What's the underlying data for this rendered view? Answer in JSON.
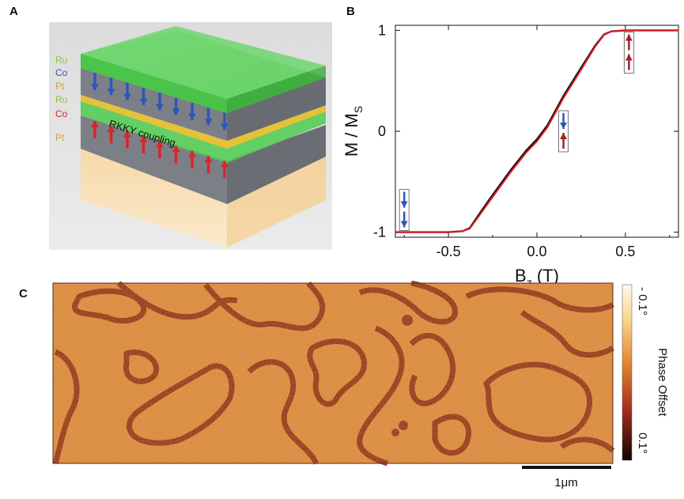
{
  "panels": {
    "a_label": "A",
    "b_label": "B",
    "c_label": "C"
  },
  "stack": {
    "layers": [
      {
        "name": "Ru",
        "color": "#8cc63f"
      },
      {
        "name": "Co",
        "color": "#2e56b8"
      },
      {
        "name": "Pt",
        "color": "#c9a44c"
      },
      {
        "name": "Ru",
        "color": "#8cc63f"
      },
      {
        "name": "Co",
        "color": "#d9252a"
      },
      {
        "name": "Pt",
        "color": "#c9a44c"
      }
    ],
    "coupling_label": "RKKY coupling"
  },
  "chart_data": {
    "type": "line",
    "title": "",
    "xlabel_main": "B",
    "xlabel_sub": "z",
    "xlabel_unit": " (T)",
    "ylabel_main": "M / M",
    "ylabel_sub": "S",
    "xlim": [
      -0.8,
      0.8
    ],
    "ylim": [
      -1.05,
      1.05
    ],
    "xticks": [
      -0.5,
      0.0,
      0.5
    ],
    "xtick_labels": [
      "-0.5",
      "0.0",
      "0.5"
    ],
    "yticks": [
      -1,
      0,
      1
    ],
    "ytick_labels": [
      "-1",
      "0",
      "1"
    ],
    "series": [
      {
        "name": "black",
        "color": "#111111",
        "x": [
          -0.8,
          -0.5,
          -0.42,
          -0.38,
          -0.33,
          -0.25,
          -0.15,
          -0.06,
          0.0,
          0.06,
          0.15,
          0.25,
          0.33,
          0.38,
          0.42,
          0.5,
          0.8
        ],
        "y": [
          -1.0,
          -1.0,
          -0.99,
          -0.96,
          -0.83,
          -0.63,
          -0.39,
          -0.19,
          -0.08,
          0.06,
          0.35,
          0.63,
          0.85,
          0.96,
          0.99,
          1.0,
          1.0
        ]
      },
      {
        "name": "red",
        "color": "#dd1f26",
        "x": [
          -0.8,
          -0.5,
          -0.42,
          -0.38,
          -0.33,
          -0.25,
          -0.15,
          -0.06,
          0.0,
          0.06,
          0.15,
          0.25,
          0.33,
          0.38,
          0.42,
          0.5,
          0.8
        ],
        "y": [
          -1.0,
          -1.0,
          -0.99,
          -0.965,
          -0.845,
          -0.65,
          -0.41,
          -0.21,
          -0.1,
          0.04,
          0.33,
          0.61,
          0.84,
          0.955,
          0.99,
          1.0,
          1.0
        ]
      }
    ],
    "spin_insets": [
      {
        "x": -0.75,
        "y": -0.78,
        "arrows": [
          "down",
          "down"
        ],
        "colors": [
          "#2e56b8",
          "#2e56b8"
        ]
      },
      {
        "x": 0.15,
        "y": 0.0,
        "arrows": [
          "down",
          "up"
        ],
        "colors": [
          "#2e56b8",
          "#a3222a"
        ]
      },
      {
        "x": 0.52,
        "y": 0.78,
        "arrows": [
          "up",
          "up"
        ],
        "colors": [
          "#a3222a",
          "#a3222a"
        ]
      }
    ]
  },
  "image_c": {
    "colorbar_label": "Phase Offset",
    "colorbar_top": "- 0.1°",
    "colorbar_bottom": "0.1°",
    "scale_bar_label": "1μm"
  }
}
